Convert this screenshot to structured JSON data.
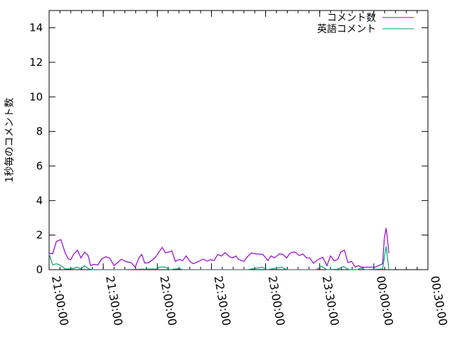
{
  "chart_data": {
    "type": "line",
    "title": "",
    "xlabel": "",
    "ylabel": "1秒毎のコメント数",
    "xlim": [
      "21:00:00",
      "00:30:00"
    ],
    "ylim": [
      0,
      15
    ],
    "yticks": [
      0,
      2,
      4,
      6,
      8,
      10,
      12,
      14
    ],
    "xticks": [
      "21:00:00",
      "21:30:00",
      "22:00:00",
      "22:30:00",
      "23:00:00",
      "23:30:00",
      "00:00:00",
      "00:30:00"
    ],
    "grid": false,
    "legend_position": "top-right",
    "series": [
      {
        "name": "コメント数",
        "color": "#9400d3",
        "points": [
          [
            "21:00:00",
            0.95
          ],
          [
            "21:02:00",
            0.92
          ],
          [
            "21:04:00",
            1.63
          ],
          [
            "21:06:30",
            1.74
          ],
          [
            "21:09:00",
            0.95
          ],
          [
            "21:10:30",
            0.64
          ],
          [
            "21:12:00",
            0.57
          ],
          [
            "21:13:30",
            0.88
          ],
          [
            "21:15:40",
            1.13
          ],
          [
            "21:17:40",
            0.68
          ],
          [
            "21:19:40",
            1.02
          ],
          [
            "21:21:40",
            0.82
          ],
          [
            "21:23:00",
            0.24
          ],
          [
            "21:25:00",
            0.31
          ],
          [
            "21:27:00",
            0.27
          ],
          [
            "21:29:00",
            0.61
          ],
          [
            "21:31:30",
            0.75
          ],
          [
            "21:33:40",
            0.65
          ],
          [
            "21:36:00",
            0.24
          ],
          [
            "21:38:00",
            0.41
          ],
          [
            "21:40:00",
            0.6
          ],
          [
            "21:43:00",
            0.45
          ],
          [
            "21:45:30",
            0.41
          ],
          [
            "21:47:40",
            0.14
          ],
          [
            "21:50:00",
            0.72
          ],
          [
            "21:51:20",
            0.88
          ],
          [
            "21:53:00",
            0.38
          ],
          [
            "21:55:20",
            0.41
          ],
          [
            "21:59:00",
            0.72
          ],
          [
            "22:02:40",
            1.29
          ],
          [
            "22:04:30",
            0.98
          ],
          [
            "22:06:30",
            1.02
          ],
          [
            "22:08:00",
            1.09
          ],
          [
            "22:10:00",
            0.48
          ],
          [
            "22:12:00",
            0.59
          ],
          [
            "22:14:00",
            0.52
          ],
          [
            "22:16:00",
            0.8
          ],
          [
            "22:18:00",
            0.48
          ],
          [
            "22:20:00",
            0.34
          ],
          [
            "22:23:00",
            0.48
          ],
          [
            "22:25:30",
            0.61
          ],
          [
            "22:27:30",
            0.5
          ],
          [
            "22:29:30",
            0.57
          ],
          [
            "22:31:30",
            0.54
          ],
          [
            "22:33:30",
            0.88
          ],
          [
            "22:35:30",
            0.79
          ],
          [
            "22:37:30",
            0.99
          ],
          [
            "22:40:00",
            0.75
          ],
          [
            "22:41:30",
            0.68
          ],
          [
            "22:43:30",
            0.79
          ],
          [
            "22:45:00",
            0.59
          ],
          [
            "22:48:00",
            0.48
          ],
          [
            "22:49:40",
            0.72
          ],
          [
            "22:52:10",
            0.97
          ],
          [
            "22:55:00",
            0.91
          ],
          [
            "22:58:30",
            0.88
          ],
          [
            "23:01:20",
            0.53
          ],
          [
            "23:03:00",
            0.8
          ],
          [
            "23:05:00",
            0.68
          ],
          [
            "23:07:40",
            0.92
          ],
          [
            "23:09:40",
            0.88
          ],
          [
            "23:11:40",
            0.68
          ],
          [
            "23:13:30",
            0.95
          ],
          [
            "23:15:10",
            1.02
          ],
          [
            "23:16:50",
            0.98
          ],
          [
            "23:18:40",
            0.82
          ],
          [
            "23:20:40",
            0.91
          ],
          [
            "23:22:40",
            0.68
          ],
          [
            "23:24:30",
            0.68
          ],
          [
            "23:26:30",
            0.37
          ],
          [
            "23:28:30",
            0.54
          ],
          [
            "23:31:40",
            0.72
          ],
          [
            "23:34:00",
            0.23
          ],
          [
            "23:36:00",
            0.8
          ],
          [
            "23:38:00",
            0.52
          ],
          [
            "23:40:00",
            0.59
          ],
          [
            "23:41:40",
            1.02
          ],
          [
            "23:43:40",
            1.13
          ],
          [
            "23:45:40",
            0.41
          ],
          [
            "23:47:40",
            0.48
          ],
          [
            "23:49:40",
            0.16
          ],
          [
            "23:51:30",
            0.23
          ],
          [
            "23:53:10",
            0.14
          ],
          [
            "23:57:20",
            0.14
          ],
          [
            "00:00:40",
            0.14
          ],
          [
            "00:02:40",
            0.23
          ],
          [
            "00:04:50",
            0.34
          ],
          [
            "00:05:50",
            1.84
          ],
          [
            "00:06:50",
            2.41
          ],
          [
            "00:07:30",
            1.84
          ],
          [
            "00:08:20",
            0.95
          ]
        ]
      },
      {
        "name": "英語コメント",
        "color": "#009e73",
        "points": [
          [
            "21:00:00",
            0.91
          ],
          [
            "21:02:00",
            0.27
          ],
          [
            "21:04:00",
            0.34
          ],
          [
            "21:06:00",
            0.27
          ],
          [
            "21:09:00",
            0.04
          ],
          [
            "21:12:00",
            0.04
          ],
          [
            "21:15:30",
            0.14
          ],
          [
            "21:17:40",
            0.04
          ],
          [
            "21:19:40",
            0.23
          ],
          [
            "21:22:00",
            0.04
          ],
          [
            "21:24:30",
            0
          ],
          [
            "21:40:00",
            0
          ],
          [
            "21:50:00",
            0.03
          ],
          [
            "22:00:00",
            0.04
          ],
          [
            "22:01:00",
            0.14
          ],
          [
            "22:04:00",
            0.16
          ],
          [
            "22:07:00",
            0
          ],
          [
            "22:12:00",
            0.07
          ],
          [
            "22:14:00",
            0
          ],
          [
            "22:50:00",
            0
          ],
          [
            "22:58:00",
            0.14
          ],
          [
            "23:01:00",
            0
          ],
          [
            "23:09:00",
            0.14
          ],
          [
            "23:11:40",
            0
          ],
          [
            "23:28:00",
            0
          ],
          [
            "23:31:00",
            0.2
          ],
          [
            "23:34:00",
            0
          ],
          [
            "23:40:00",
            0.03
          ],
          [
            "23:43:00",
            0.18
          ],
          [
            "23:46:30",
            0
          ],
          [
            "23:51:00",
            0
          ],
          [
            "23:53:00",
            0.1
          ],
          [
            "23:55:00",
            0
          ],
          [
            "00:04:50",
            0.04
          ],
          [
            "00:06:50",
            1.36
          ],
          [
            "00:08:20",
            0
          ]
        ]
      }
    ]
  }
}
